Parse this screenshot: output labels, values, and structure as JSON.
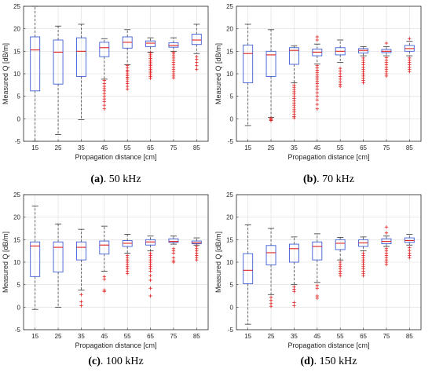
{
  "chart_data": [
    {
      "type": "boxplot",
      "caption_letter": "(a)",
      "caption_rest": ". 50 kHz",
      "xlabel": "Propagation distance [cm]",
      "ylabel": "Measured Q [dB/m]",
      "ylim": [
        -5,
        25
      ],
      "yticks": [
        -5,
        0,
        5,
        10,
        15,
        20,
        25
      ],
      "grid": true,
      "categories": [
        "15",
        "25",
        "35",
        "45",
        "55",
        "65",
        "75",
        "85"
      ],
      "boxes": [
        {
          "whisker_low": -5.0,
          "q1": 6.2,
          "median": 15.3,
          "q3": 18.2,
          "whisker_high": 25.0,
          "outliers": []
        },
        {
          "whisker_low": -3.5,
          "q1": 7.7,
          "median": 14.8,
          "q3": 17.5,
          "whisker_high": 20.6,
          "outliers": []
        },
        {
          "whisker_low": -0.2,
          "q1": 9.4,
          "median": 15.0,
          "q3": 18.0,
          "whisker_high": 21.0,
          "outliers": []
        },
        {
          "whisker_low": 8.8,
          "q1": 13.8,
          "median": 15.8,
          "q3": 17.0,
          "whisker_high": 17.8,
          "outliers": [
            8.5,
            7.8,
            7.2,
            6.7,
            6.2,
            5.6,
            5.0,
            4.4,
            3.8,
            3.0,
            2.2
          ]
        },
        {
          "whisker_low": 12.0,
          "q1": 15.7,
          "median": 17.0,
          "q3": 18.2,
          "whisker_high": 19.8,
          "outliers": [
            11.8,
            11.3,
            10.8,
            10.4,
            10.0,
            9.6,
            9.2,
            8.8,
            8.3,
            7.8,
            7.2,
            6.6
          ]
        },
        {
          "whisker_low": 14.8,
          "q1": 16.0,
          "median": 16.8,
          "q3": 17.3,
          "whisker_high": 18.0,
          "outliers": [
            14.6,
            14.2,
            13.8,
            13.4,
            13.0,
            12.6,
            12.2,
            11.8,
            11.4,
            11.0,
            10.6,
            10.2,
            9.8,
            9.4,
            9.0
          ]
        },
        {
          "whisker_low": 15.0,
          "q1": 15.9,
          "median": 16.3,
          "q3": 16.9,
          "whisker_high": 18.0,
          "outliers": [
            14.8,
            14.4,
            14.0,
            13.5,
            13.0,
            12.5,
            12.0,
            11.5,
            11.0,
            10.5,
            10.0,
            9.5,
            9.1
          ]
        },
        {
          "whisker_low": 14.5,
          "q1": 16.5,
          "median": 17.5,
          "q3": 18.8,
          "whisker_high": 21.0,
          "outliers": [
            13.8,
            13.2,
            12.5,
            11.8,
            11.0
          ]
        }
      ]
    },
    {
      "type": "boxplot",
      "caption_letter": "(b)",
      "caption_rest": ". 70 kHz",
      "xlabel": "Propagation distance [cm]",
      "ylabel": "Measured Q [dB/m]",
      "ylim": [
        -5,
        25
      ],
      "yticks": [
        -5,
        0,
        5,
        10,
        15,
        20,
        25
      ],
      "grid": true,
      "categories": [
        "15",
        "25",
        "35",
        "45",
        "55",
        "65",
        "75",
        "85"
      ],
      "boxes": [
        {
          "whisker_low": -1.5,
          "q1": 8.0,
          "median": 14.5,
          "q3": 16.4,
          "whisker_high": 21.0,
          "outliers": []
        },
        {
          "whisker_low": 0.3,
          "q1": 9.4,
          "median": 14.2,
          "q3": 15.0,
          "whisker_high": 19.8,
          "outliers": [
            0.1,
            -0.1,
            -0.3,
            -0.4
          ]
        },
        {
          "whisker_low": 8.0,
          "q1": 12.1,
          "median": 15.2,
          "q3": 15.8,
          "whisker_high": 16.2,
          "outliers": [
            7.5,
            7.0,
            6.5,
            6.0,
            5.5,
            5.0,
            4.5,
            4.0,
            3.5,
            3.0,
            2.5,
            2.0,
            1.5,
            1.0,
            0.5,
            0.2
          ]
        },
        {
          "whisker_low": 12.2,
          "q1": 14.0,
          "median": 14.8,
          "q3": 15.5,
          "whisker_high": 16.6,
          "outliers": [
            18.2,
            17.5,
            11.8,
            11.3,
            10.8,
            10.3,
            9.8,
            9.3,
            8.8,
            8.3,
            7.8,
            7.2,
            6.6,
            5.8,
            5.0,
            4.2,
            3.2,
            2.2
          ]
        },
        {
          "whisker_low": 12.5,
          "q1": 14.2,
          "median": 15.0,
          "q3": 15.8,
          "whisker_high": 17.5,
          "outliers": [
            11.2,
            10.6,
            10.0,
            9.4,
            8.8,
            8.2,
            7.6,
            7.2
          ]
        },
        {
          "whisker_low": 14.0,
          "q1": 14.6,
          "median": 15.2,
          "q3": 15.6,
          "whisker_high": 16.0,
          "outliers": [
            13.5,
            13.0,
            12.5,
            12.0,
            11.5,
            11.0,
            10.5,
            10.0,
            9.5,
            9.0,
            8.5,
            8.0
          ]
        },
        {
          "whisker_low": 14.0,
          "q1": 14.7,
          "median": 15.0,
          "q3": 15.4,
          "whisker_high": 16.0,
          "outliers": [
            16.8,
            13.6,
            13.0,
            12.5,
            12.0,
            11.5,
            11.0,
            10.5,
            10.0,
            9.5
          ]
        },
        {
          "whisker_low": 14.0,
          "q1": 15.0,
          "median": 15.6,
          "q3": 16.3,
          "whisker_high": 17.2,
          "outliers": [
            17.8,
            13.5,
            13.0,
            12.5,
            12.0,
            11.5,
            11.0,
            10.5
          ]
        }
      ]
    },
    {
      "type": "boxplot",
      "caption_letter": "(c)",
      "caption_rest": ". 100 kHz",
      "xlabel": "Propagation distance [cm]",
      "ylabel": "Measured Q [dB/m]",
      "ylim": [
        -5,
        25
      ],
      "yticks": [
        -5,
        0,
        5,
        10,
        15,
        20,
        25
      ],
      "grid": true,
      "categories": [
        "15",
        "25",
        "35",
        "45",
        "55",
        "65",
        "75",
        "85"
      ],
      "boxes": [
        {
          "whisker_low": -0.5,
          "q1": 6.8,
          "median": 13.6,
          "q3": 14.5,
          "whisker_high": 22.5,
          "outliers": []
        },
        {
          "whisker_low": 0.0,
          "q1": 7.8,
          "median": 13.3,
          "q3": 14.5,
          "whisker_high": 18.5,
          "outliers": []
        },
        {
          "whisker_low": 3.8,
          "q1": 10.5,
          "median": 13.3,
          "q3": 14.5,
          "whisker_high": 17.3,
          "outliers": [
            2.8,
            1.2,
            0.3
          ]
        },
        {
          "whisker_low": 8.0,
          "q1": 11.8,
          "median": 13.8,
          "q3": 14.7,
          "whisker_high": 18.0,
          "outliers": [
            6.8,
            6.2,
            3.8,
            3.5
          ]
        },
        {
          "whisker_low": 12.0,
          "q1": 13.5,
          "median": 14.2,
          "q3": 14.8,
          "whisker_high": 16.2,
          "outliers": [
            11.5,
            11.0,
            10.5,
            10.0,
            9.5,
            9.0,
            8.5,
            8.0,
            7.5
          ]
        },
        {
          "whisker_low": 12.5,
          "q1": 13.8,
          "median": 14.5,
          "q3": 15.0,
          "whisker_high": 15.8,
          "outliers": [
            12.0,
            11.5,
            11.0,
            10.5,
            10.0,
            9.5,
            9.0,
            8.5,
            8.0,
            7.0,
            6.0,
            4.2,
            2.5
          ]
        },
        {
          "whisker_low": 14.0,
          "q1": 14.4,
          "median": 14.6,
          "q3": 15.2,
          "whisker_high": 15.8,
          "outliers": [
            13.0,
            12.5,
            12.0,
            11.0,
            10.3,
            10.0
          ]
        },
        {
          "whisker_low": 13.8,
          "q1": 14.1,
          "median": 14.3,
          "q3": 14.7,
          "whisker_high": 15.4,
          "outliers": [
            13.5,
            13.0,
            12.5,
            12.0,
            11.5,
            11.0,
            10.5
          ]
        }
      ]
    },
    {
      "type": "boxplot",
      "caption_letter": "(d)",
      "caption_rest": ". 150 kHz",
      "xlabel": "Propagation distance [cm]",
      "ylabel": "Measured Q [dB/m]",
      "ylim": [
        -5,
        25
      ],
      "yticks": [
        -5,
        0,
        5,
        10,
        15,
        20,
        25
      ],
      "grid": true,
      "categories": [
        "15",
        "25",
        "35",
        "45",
        "55",
        "65",
        "75",
        "85"
      ],
      "boxes": [
        {
          "whisker_low": -3.8,
          "q1": 5.2,
          "median": 8.2,
          "q3": 11.9,
          "whisker_high": 18.3,
          "outliers": []
        },
        {
          "whisker_low": 2.8,
          "q1": 9.4,
          "median": 12.1,
          "q3": 13.7,
          "whisker_high": 17.5,
          "outliers": [
            2.2,
            1.5,
            0.8,
            0.2
          ]
        },
        {
          "whisker_low": 5.0,
          "q1": 10.0,
          "median": 13.0,
          "q3": 14.0,
          "whisker_high": 15.6,
          "outliers": [
            4.5,
            4.0,
            3.5,
            1.0,
            0.3
          ]
        },
        {
          "whisker_low": 5.5,
          "q1": 10.5,
          "median": 13.5,
          "q3": 14.5,
          "whisker_high": 16.3,
          "outliers": [
            4.8,
            4.2,
            2.5,
            2.0
          ]
        },
        {
          "whisker_low": 10.5,
          "q1": 12.8,
          "median": 14.2,
          "q3": 15.0,
          "whisker_high": 15.5,
          "outliers": [
            10.0,
            9.5,
            9.0,
            8.5,
            8.0,
            7.5,
            7.0
          ]
        },
        {
          "whisker_low": 12.5,
          "q1": 13.5,
          "median": 14.3,
          "q3": 15.0,
          "whisker_high": 15.6,
          "outliers": [
            12.0,
            11.5,
            11.0,
            10.5,
            10.0,
            9.5,
            9.0,
            8.5,
            8.0,
            7.5,
            7.0
          ]
        },
        {
          "whisker_low": 13.5,
          "q1": 14.1,
          "median": 14.6,
          "q3": 15.2,
          "whisker_high": 15.8,
          "outliers": [
            17.8,
            16.5,
            13.0,
            12.5,
            12.0,
            11.5,
            11.0,
            10.5,
            10.0,
            9.5
          ]
        },
        {
          "whisker_low": 13.8,
          "q1": 14.4,
          "median": 14.8,
          "q3": 15.4,
          "whisker_high": 16.2,
          "outliers": [
            13.2,
            12.6,
            12.0,
            11.5,
            11.0
          ]
        }
      ]
    }
  ]
}
